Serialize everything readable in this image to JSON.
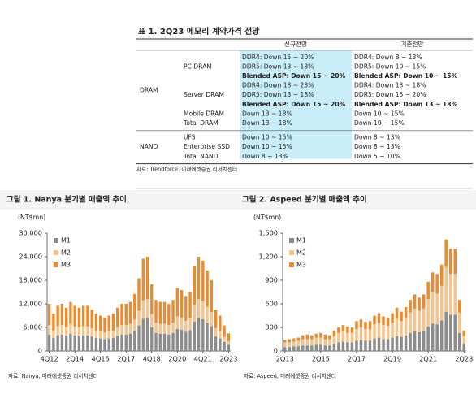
{
  "table": {
    "title": "표 1. 2Q23 메모리 계약가격 전망",
    "header": [
      "신규전망",
      "기존전망"
    ],
    "groups": [
      {
        "name": "DRAM",
        "items": [
          {
            "product": "PC DRAM",
            "new": [
              "DDR4: Down 15 ~ 20%",
              "DDR5: Down 13 ~ 18%",
              "Blended ASP: Down 15 ~ 20%"
            ],
            "old": [
              "DDR4: Down 8 ~ 13%",
              "DDR5: Down 10 ~ 15%",
              "Blended ASP: Down 10 ~ 15%"
            ]
          },
          {
            "product": "Server DRAM",
            "new": [
              "DDR4: Down 18 ~ 23%",
              "DDR5: Down 13 ~ 18%",
              "Blended ASP: Down 15 ~ 20%"
            ],
            "old": [
              "DDR4: Down 13 ~ 18%",
              "DDR5: Down 15 ~ 20%",
              "Blended ASP: Down 13 ~ 18%"
            ]
          },
          {
            "product": "Mobile DRAM",
            "new": [
              "Down 13 ~ 18%"
            ],
            "old": [
              "Down 10 ~ 15%"
            ]
          },
          {
            "product": "Total DRAM",
            "new": [
              "Down 13 ~ 18%"
            ],
            "old": [
              "Down 10 ~ 15%"
            ]
          }
        ]
      },
      {
        "name": "NAND",
        "items": [
          {
            "product": "UFS",
            "new": [
              "Down 10 ~ 15%"
            ],
            "old": [
              "Down 8 ~ 13%"
            ]
          },
          {
            "product": "Enterprise SSD",
            "new": [
              "Down 10 ~ 15%"
            ],
            "old": [
              "Down 8 ~ 13%"
            ]
          },
          {
            "product": "Total NAND",
            "new": [
              "Down 8 ~ 13%"
            ],
            "old": [
              "Down 5 ~ 10%"
            ]
          }
        ]
      }
    ],
    "source": "자료: Trendforce, 미래에셋증권 리서치센터"
  },
  "chart_data": [
    {
      "type": "bar",
      "stacked": true,
      "title": "그림 1. Nanya 분기별 매출액 추이",
      "unit": "(NT$mn)",
      "categories": [
        "4Q12",
        null,
        null,
        null,
        null,
        null,
        "2Q14",
        null,
        null,
        null,
        null,
        null,
        "4Q15",
        null,
        null,
        null,
        null,
        null,
        "2Q17",
        null,
        null,
        null,
        null,
        null,
        "4Q18",
        null,
        null,
        null,
        null,
        null,
        "2Q20",
        null,
        null,
        null,
        null,
        null,
        "4Q21",
        null,
        null,
        null,
        null,
        null,
        "2Q23"
      ],
      "series": [
        {
          "name": "M1",
          "color": "#8c8c8c",
          "values": [
            4200,
            3300,
            4000,
            4200,
            3900,
            4400,
            4000,
            3900,
            4000,
            4000,
            3700,
            3300,
            3200,
            3000,
            3200,
            3300,
            3900,
            4200,
            4200,
            4400,
            5100,
            6500,
            8200,
            8400,
            6000,
            4600,
            4400,
            4400,
            4200,
            4600,
            5600,
            5400,
            4900,
            5300,
            7500,
            8400,
            8100,
            7200,
            6300,
            3700,
            3200,
            2300,
            1600
          ]
        },
        {
          "name": "M2",
          "color": "#f6c38c",
          "values": [
            2400,
            1900,
            2300,
            2400,
            2200,
            2500,
            2300,
            2200,
            2300,
            2300,
            2100,
            1900,
            1800,
            1700,
            1800,
            1900,
            2200,
            2400,
            2400,
            2500,
            2900,
            3700,
            4700,
            4800,
            3400,
            2600,
            2500,
            2500,
            2400,
            2600,
            3200,
            3100,
            2800,
            3000,
            4300,
            4800,
            4600,
            4100,
            3600,
            2100,
            1800,
            1300,
            900
          ]
        },
        {
          "name": "M3",
          "color": "#ec8a2e",
          "values": [
            5400,
            4300,
            5200,
            5400,
            4900,
            5600,
            5200,
            4900,
            5200,
            5200,
            4700,
            4300,
            4000,
            3800,
            4000,
            4300,
            4900,
            5400,
            5400,
            5600,
            6500,
            8300,
            10600,
            10800,
            7600,
            5800,
            5600,
            5600,
            5400,
            5800,
            7200,
            7000,
            6300,
            6700,
            9700,
            10800,
            10300,
            9200,
            8100,
            4700,
            4000,
            2900,
            2000
          ]
        }
      ],
      "ylim": [
        0,
        30000
      ],
      "yticks": [
        0,
        {
          "value": 6000,
          "label": "6,000"
        },
        {
          "value": 12000,
          "label": "12,000"
        },
        {
          "value": 18000,
          "label": "18,000"
        },
        {
          "value": 24000,
          "label": "24,000"
        },
        {
          "value": 30000,
          "label": "30,000"
        }
      ],
      "source": "자료: Nanya, 미래에셋증권 리서치센터"
    },
    {
      "type": "bar",
      "stacked": true,
      "title": "그림 2. Aspeed 분기별 매출액 추이",
      "unit": "(NT$mn)",
      "categories": [
        "2Q13",
        null,
        null,
        null,
        null,
        null,
        null,
        null,
        "2Q15",
        null,
        null,
        null,
        null,
        null,
        null,
        null,
        "2Q17",
        null,
        null,
        null,
        null,
        null,
        null,
        null,
        "2Q19",
        null,
        null,
        null,
        null,
        null,
        null,
        null,
        "2Q21",
        null,
        null,
        null,
        null,
        null,
        null,
        null,
        "2Q23"
      ],
      "series": [
        {
          "name": "M1",
          "color": "#8c8c8c",
          "values": [
            50,
            50,
            60,
            60,
            70,
            70,
            70,
            80,
            80,
            70,
            70,
            90,
            110,
            120,
            110,
            110,
            130,
            140,
            130,
            130,
            160,
            170,
            150,
            150,
            170,
            190,
            180,
            200,
            230,
            250,
            240,
            250,
            310,
            350,
            340,
            390,
            500,
            460,
            460,
            230,
            90
          ]
        },
        {
          "name": "M2",
          "color": "#f6c38c",
          "values": [
            60,
            60,
            60,
            70,
            80,
            80,
            80,
            90,
            90,
            80,
            80,
            100,
            120,
            130,
            120,
            120,
            150,
            160,
            150,
            150,
            180,
            190,
            180,
            170,
            190,
            220,
            200,
            220,
            260,
            290,
            270,
            290,
            350,
            400,
            390,
            440,
            570,
            520,
            520,
            260,
            100
          ]
        },
        {
          "name": "M3",
          "color": "#ec8a2e",
          "values": [
            30,
            40,
            40,
            40,
            50,
            60,
            50,
            50,
            60,
            60,
            50,
            70,
            70,
            80,
            80,
            70,
            100,
            100,
            90,
            100,
            110,
            120,
            110,
            100,
            120,
            140,
            120,
            140,
            160,
            180,
            170,
            180,
            220,
            250,
            250,
            270,
            350,
            320,
            320,
            160,
            70
          ]
        }
      ],
      "ylim": [
        0,
        1500
      ],
      "yticks": [
        0,
        300,
        600,
        900,
        {
          "value": 1200,
          "label": "1,200"
        },
        {
          "value": 1500,
          "label": "1,500"
        }
      ],
      "source": "자료: Aspeed, 미래에셋증권 리서치센터"
    }
  ]
}
